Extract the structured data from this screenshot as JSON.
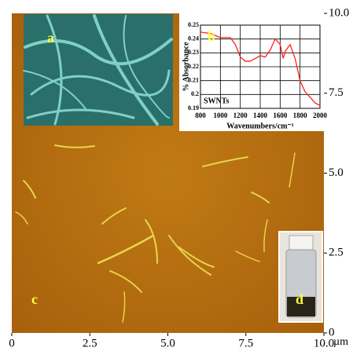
{
  "chart_data": [
    {
      "type": "image",
      "panel_labels": [
        "a",
        "c",
        "d"
      ],
      "x_unit": "µm",
      "xlim": [
        0,
        10
      ],
      "xticks": [
        0,
        2.5,
        {
          "value": 5,
          "label": "5.0"
        },
        7.5,
        {
          "value": 10,
          "label": "10.0"
        }
      ],
      "ylim": [
        0,
        10
      ],
      "yticks": [
        0,
        2.5,
        {
          "value": 5,
          "label": "5.0"
        },
        7.5,
        {
          "value": 10,
          "label": "10.0"
        }
      ]
    },
    {
      "type": "line",
      "panel_label": "b",
      "annotation": "SWNTs",
      "xlabel": "Wavenumbers/cm⁻¹",
      "ylabel": "% Absorbance",
      "x": [
        800,
        900,
        1000,
        1100,
        1150,
        1200,
        1250,
        1300,
        1350,
        1400,
        1450,
        1500,
        1550,
        1600,
        1630,
        1650,
        1700,
        1750,
        1800,
        1850,
        1900,
        1950,
        2000
      ],
      "series": [
        {
          "color": "#ff2020",
          "values": [
            0.245,
            0.244,
            0.241,
            0.241,
            0.236,
            0.227,
            0.224,
            0.224,
            0.226,
            0.228,
            0.227,
            0.232,
            0.24,
            0.236,
            0.226,
            0.231,
            0.236,
            0.226,
            0.21,
            0.202,
            0.198,
            0.194,
            0.192
          ]
        }
      ],
      "xlim": [
        800,
        2000
      ],
      "xticks": [
        800,
        1000,
        1200,
        1400,
        1600,
        1800,
        2000
      ],
      "ylim": [
        0.19,
        0.25
      ],
      "yticks": [
        0.19,
        0.2,
        0.21,
        0.22,
        0.23,
        0.24,
        0.25
      ],
      "grid": true
    }
  ]
}
